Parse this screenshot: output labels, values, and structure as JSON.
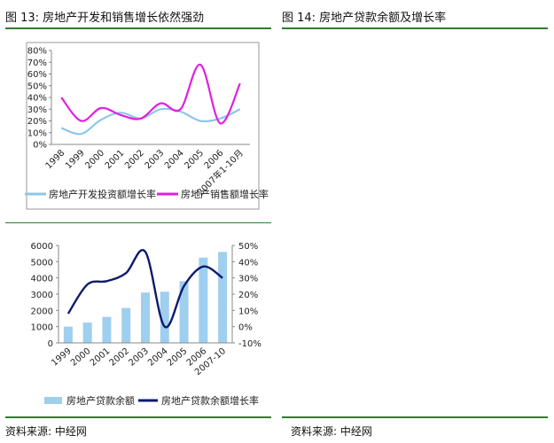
{
  "headers": {
    "left_title": "图 13:  房地产开发和销售增长依然强劲",
    "right_title": "图 14:  房地产贷款余额及增长率",
    "source_left": "资料来源:  中经网",
    "source_right": "资料来源:  中经网"
  },
  "colors": {
    "rule": "#2e7d32",
    "investment_line": "#8ec6ea",
    "sales_line": "#e020e0",
    "bar": "#9ecfee",
    "loan_growth_line": "#0d1a6e"
  },
  "chart_data": [
    {
      "type": "line",
      "categories": [
        "1998",
        "1999",
        "2000",
        "2001",
        "2002",
        "2003",
        "2004",
        "2005",
        "2006",
        "2007年1-10月"
      ],
      "ylim": [
        0,
        80
      ],
      "yticks": [
        "0%",
        "10%",
        "20%",
        "30%",
        "40%",
        "50%",
        "60%",
        "70%",
        "80%"
      ],
      "grid": false,
      "legend": "bottom",
      "series": [
        {
          "name": "房地产开发投资额增长率",
          "values": [
            14,
            9,
            21,
            27,
            22,
            30,
            28,
            20,
            22,
            30
          ],
          "smooth": true
        },
        {
          "name": "房地产销售额增长率",
          "values": [
            40,
            20,
            31,
            25,
            22,
            35,
            30,
            68,
            18,
            52
          ],
          "smooth": true
        }
      ]
    },
    {
      "type": "bar+line",
      "categories": [
        "1999",
        "2000",
        "2001",
        "2002",
        "2003",
        "2004",
        "2005",
        "2006",
        "2007-10"
      ],
      "left_ylim": [
        0,
        6000
      ],
      "left_yticks": [
        "0",
        "1000",
        "2000",
        "3000",
        "4000",
        "5000",
        "6000"
      ],
      "right_ylim": [
        -10,
        50
      ],
      "right_yticks": [
        "-10%",
        "0%",
        "10%",
        "20%",
        "30%",
        "40%",
        "50%"
      ],
      "grid": false,
      "legend": "bottom",
      "series": [
        {
          "name": "房地产贷款余额",
          "axis": "left",
          "kind": "bar",
          "values": [
            1000,
            1250,
            1600,
            2150,
            3100,
            3150,
            3800,
            5250,
            5600
          ]
        },
        {
          "name": "房地产贷款余额增长率",
          "axis": "right",
          "kind": "line",
          "values": [
            8,
            26,
            28,
            33,
            46,
            0,
            25,
            37,
            30
          ]
        }
      ]
    }
  ]
}
